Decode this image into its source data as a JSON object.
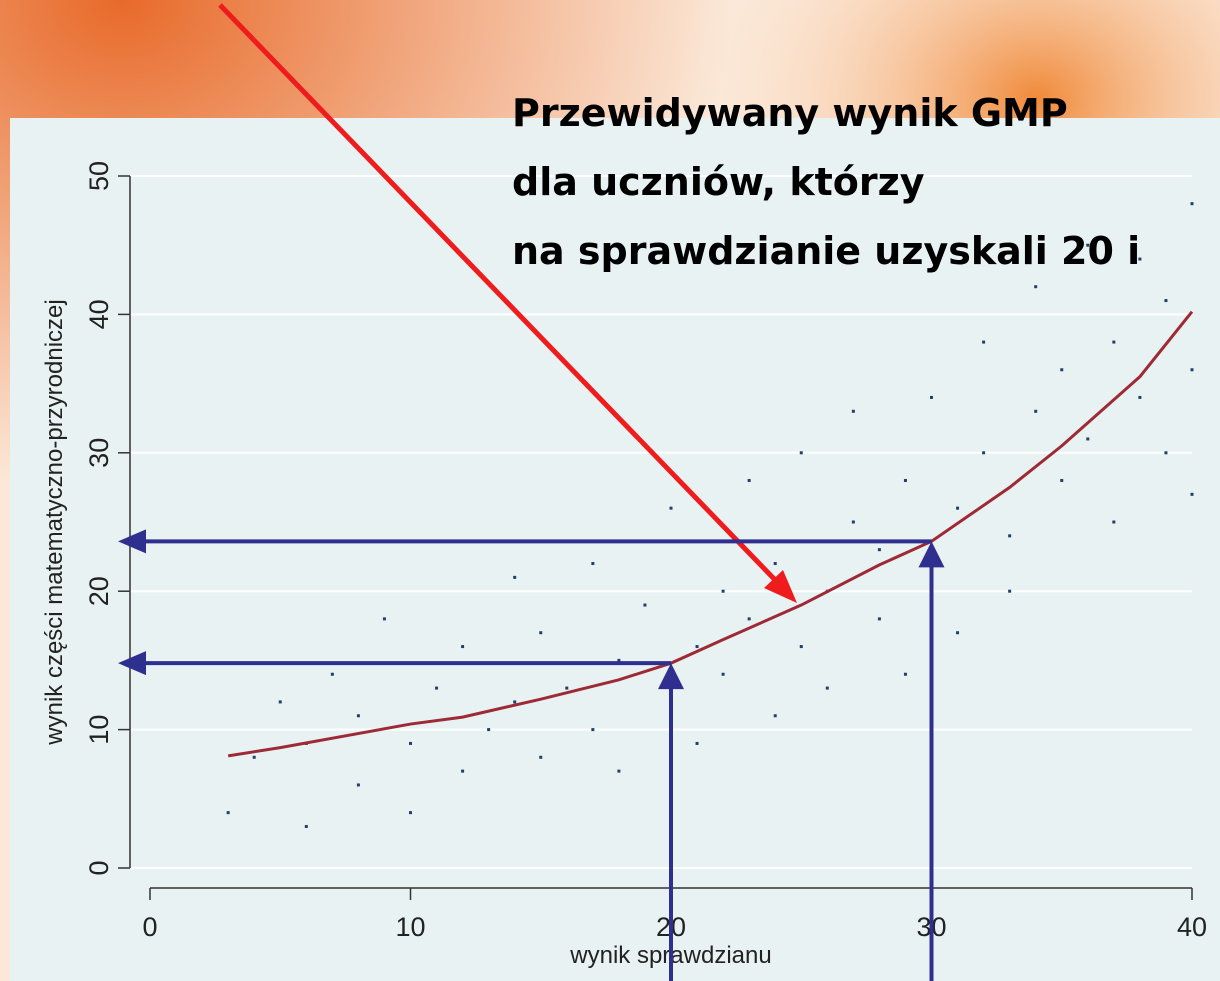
{
  "chart_data": {
    "type": "scatter",
    "annotation": [
      "Przewidywany wynik GMP",
      "dla uczniów, którzy",
      "na sprawdzianie uzyskali 20 i"
    ],
    "xlabel": "wynik sprawdzianu",
    "ylabel": "wynik części matematyczno-przyrodniczej",
    "xlim": [
      0,
      40
    ],
    "ylim": [
      0,
      50
    ],
    "xticks": [
      0,
      10,
      20,
      30,
      40
    ],
    "yticks": [
      0,
      10,
      20,
      30,
      40,
      50
    ],
    "grid": true,
    "points": {
      "color": "#1f3f6e",
      "x": [
        3,
        4,
        5,
        6,
        6,
        7,
        8,
        8,
        9,
        10,
        10,
        11,
        12,
        12,
        13,
        14,
        14,
        15,
        15,
        16,
        17,
        17,
        18,
        18,
        19,
        20,
        20,
        21,
        21,
        22,
        22,
        23,
        23,
        24,
        24,
        25,
        25,
        26,
        26,
        27,
        27,
        28,
        28,
        29,
        29,
        30,
        30,
        31,
        31,
        32,
        32,
        33,
        33,
        34,
        34,
        35,
        35,
        36,
        36,
        37,
        37,
        38,
        38,
        39,
        39,
        40,
        40,
        40
      ],
      "y": [
        4,
        8,
        12,
        3,
        9,
        14,
        6,
        11,
        18,
        4,
        9,
        13,
        7,
        16,
        10,
        21,
        12,
        8,
        17,
        13,
        22,
        10,
        15,
        7,
        19,
        12,
        26,
        16,
        9,
        20,
        14,
        28,
        18,
        11,
        22,
        16,
        30,
        20,
        13,
        25,
        33,
        18,
        23,
        28,
        14,
        21,
        34,
        26,
        17,
        30,
        38,
        24,
        20,
        33,
        42,
        28,
        36,
        31,
        45,
        25,
        38,
        34,
        44,
        30,
        41,
        48,
        36,
        27
      ]
    },
    "curve": {
      "color": "#9e2a35",
      "x": [
        3,
        5,
        10,
        12,
        15,
        18,
        20,
        22,
        25,
        28,
        30,
        33,
        35,
        38,
        40
      ],
      "values": [
        8.1,
        8.7,
        10.4,
        10.9,
        12.2,
        13.6,
        14.8,
        16.5,
        19,
        21.9,
        23.6,
        27.5,
        30.5,
        35.5,
        40.2
      ]
    },
    "guides": [
      6,
      10
    ]
  }
}
